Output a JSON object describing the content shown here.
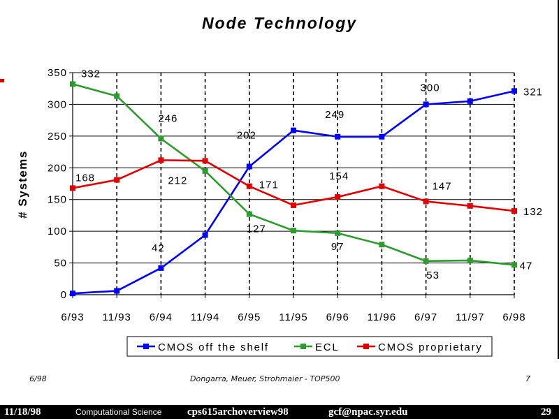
{
  "chart_data": {
    "type": "line",
    "title": "Node Technology",
    "ylabel": "# Systems",
    "xlabel": "",
    "categories": [
      "6/93",
      "11/93",
      "6/94",
      "11/94",
      "6/95",
      "11/95",
      "6/96",
      "11/96",
      "6/97",
      "11/97",
      "6/98"
    ],
    "ylim": [
      0,
      350
    ],
    "yticks": [
      0,
      50,
      100,
      150,
      200,
      250,
      300,
      350
    ],
    "grid": "horizontal solid, vertical dashed",
    "legend_position": "bottom",
    "series": [
      {
        "name": "CMOS off the shelf",
        "color": "#0000ff",
        "values": [
          2,
          6,
          42,
          94,
          202,
          259,
          249,
          249,
          300,
          305,
          321
        ]
      },
      {
        "name": "ECL",
        "color": "#2e9b2e",
        "values": [
          332,
          313,
          246,
          195,
          127,
          101,
          97,
          79,
          53,
          54,
          47
        ]
      },
      {
        "name": "CMOS proprietary",
        "color": "#e00000",
        "values": [
          168,
          181,
          212,
          211,
          171,
          141,
          154,
          171,
          147,
          140,
          132
        ]
      }
    ],
    "annotations": [
      {
        "text": "332",
        "series": 1,
        "point": 0
      },
      {
        "text": "246",
        "series": 1,
        "point": 2
      },
      {
        "text": "127",
        "series": 1,
        "point": 4
      },
      {
        "text": "97",
        "series": 1,
        "point": 6
      },
      {
        "text": "53",
        "series": 1,
        "point": 8
      },
      {
        "text": "47",
        "series": 1,
        "point": 10
      },
      {
        "text": "42",
        "series": 0,
        "point": 2
      },
      {
        "text": "202",
        "series": 0,
        "point": 4
      },
      {
        "text": "249",
        "series": 0,
        "point": 6
      },
      {
        "text": "300",
        "series": 0,
        "point": 8
      },
      {
        "text": "321",
        "series": 0,
        "point": 10
      },
      {
        "text": "168",
        "series": 2,
        "point": 0
      },
      {
        "text": "212",
        "series": 2,
        "point": 2
      },
      {
        "text": "171",
        "series": 2,
        "point": 4
      },
      {
        "text": "154",
        "series": 2,
        "point": 6
      },
      {
        "text": "147",
        "series": 2,
        "point": 8
      },
      {
        "text": "132",
        "series": 2,
        "point": 10
      }
    ]
  },
  "footer": {
    "date": "6/98",
    "authors": "Dongarra, Meuer, Strohmaier - TOP500",
    "page": "7"
  },
  "bottom_bar": {
    "date": "11/18/98",
    "subject": "Computational Science",
    "file": "cps615archoverview98",
    "email": "gcf@npac.syr.edu",
    "page": "29"
  },
  "colors": {
    "accent_red": "#d40000",
    "bar_background": "#000000"
  }
}
